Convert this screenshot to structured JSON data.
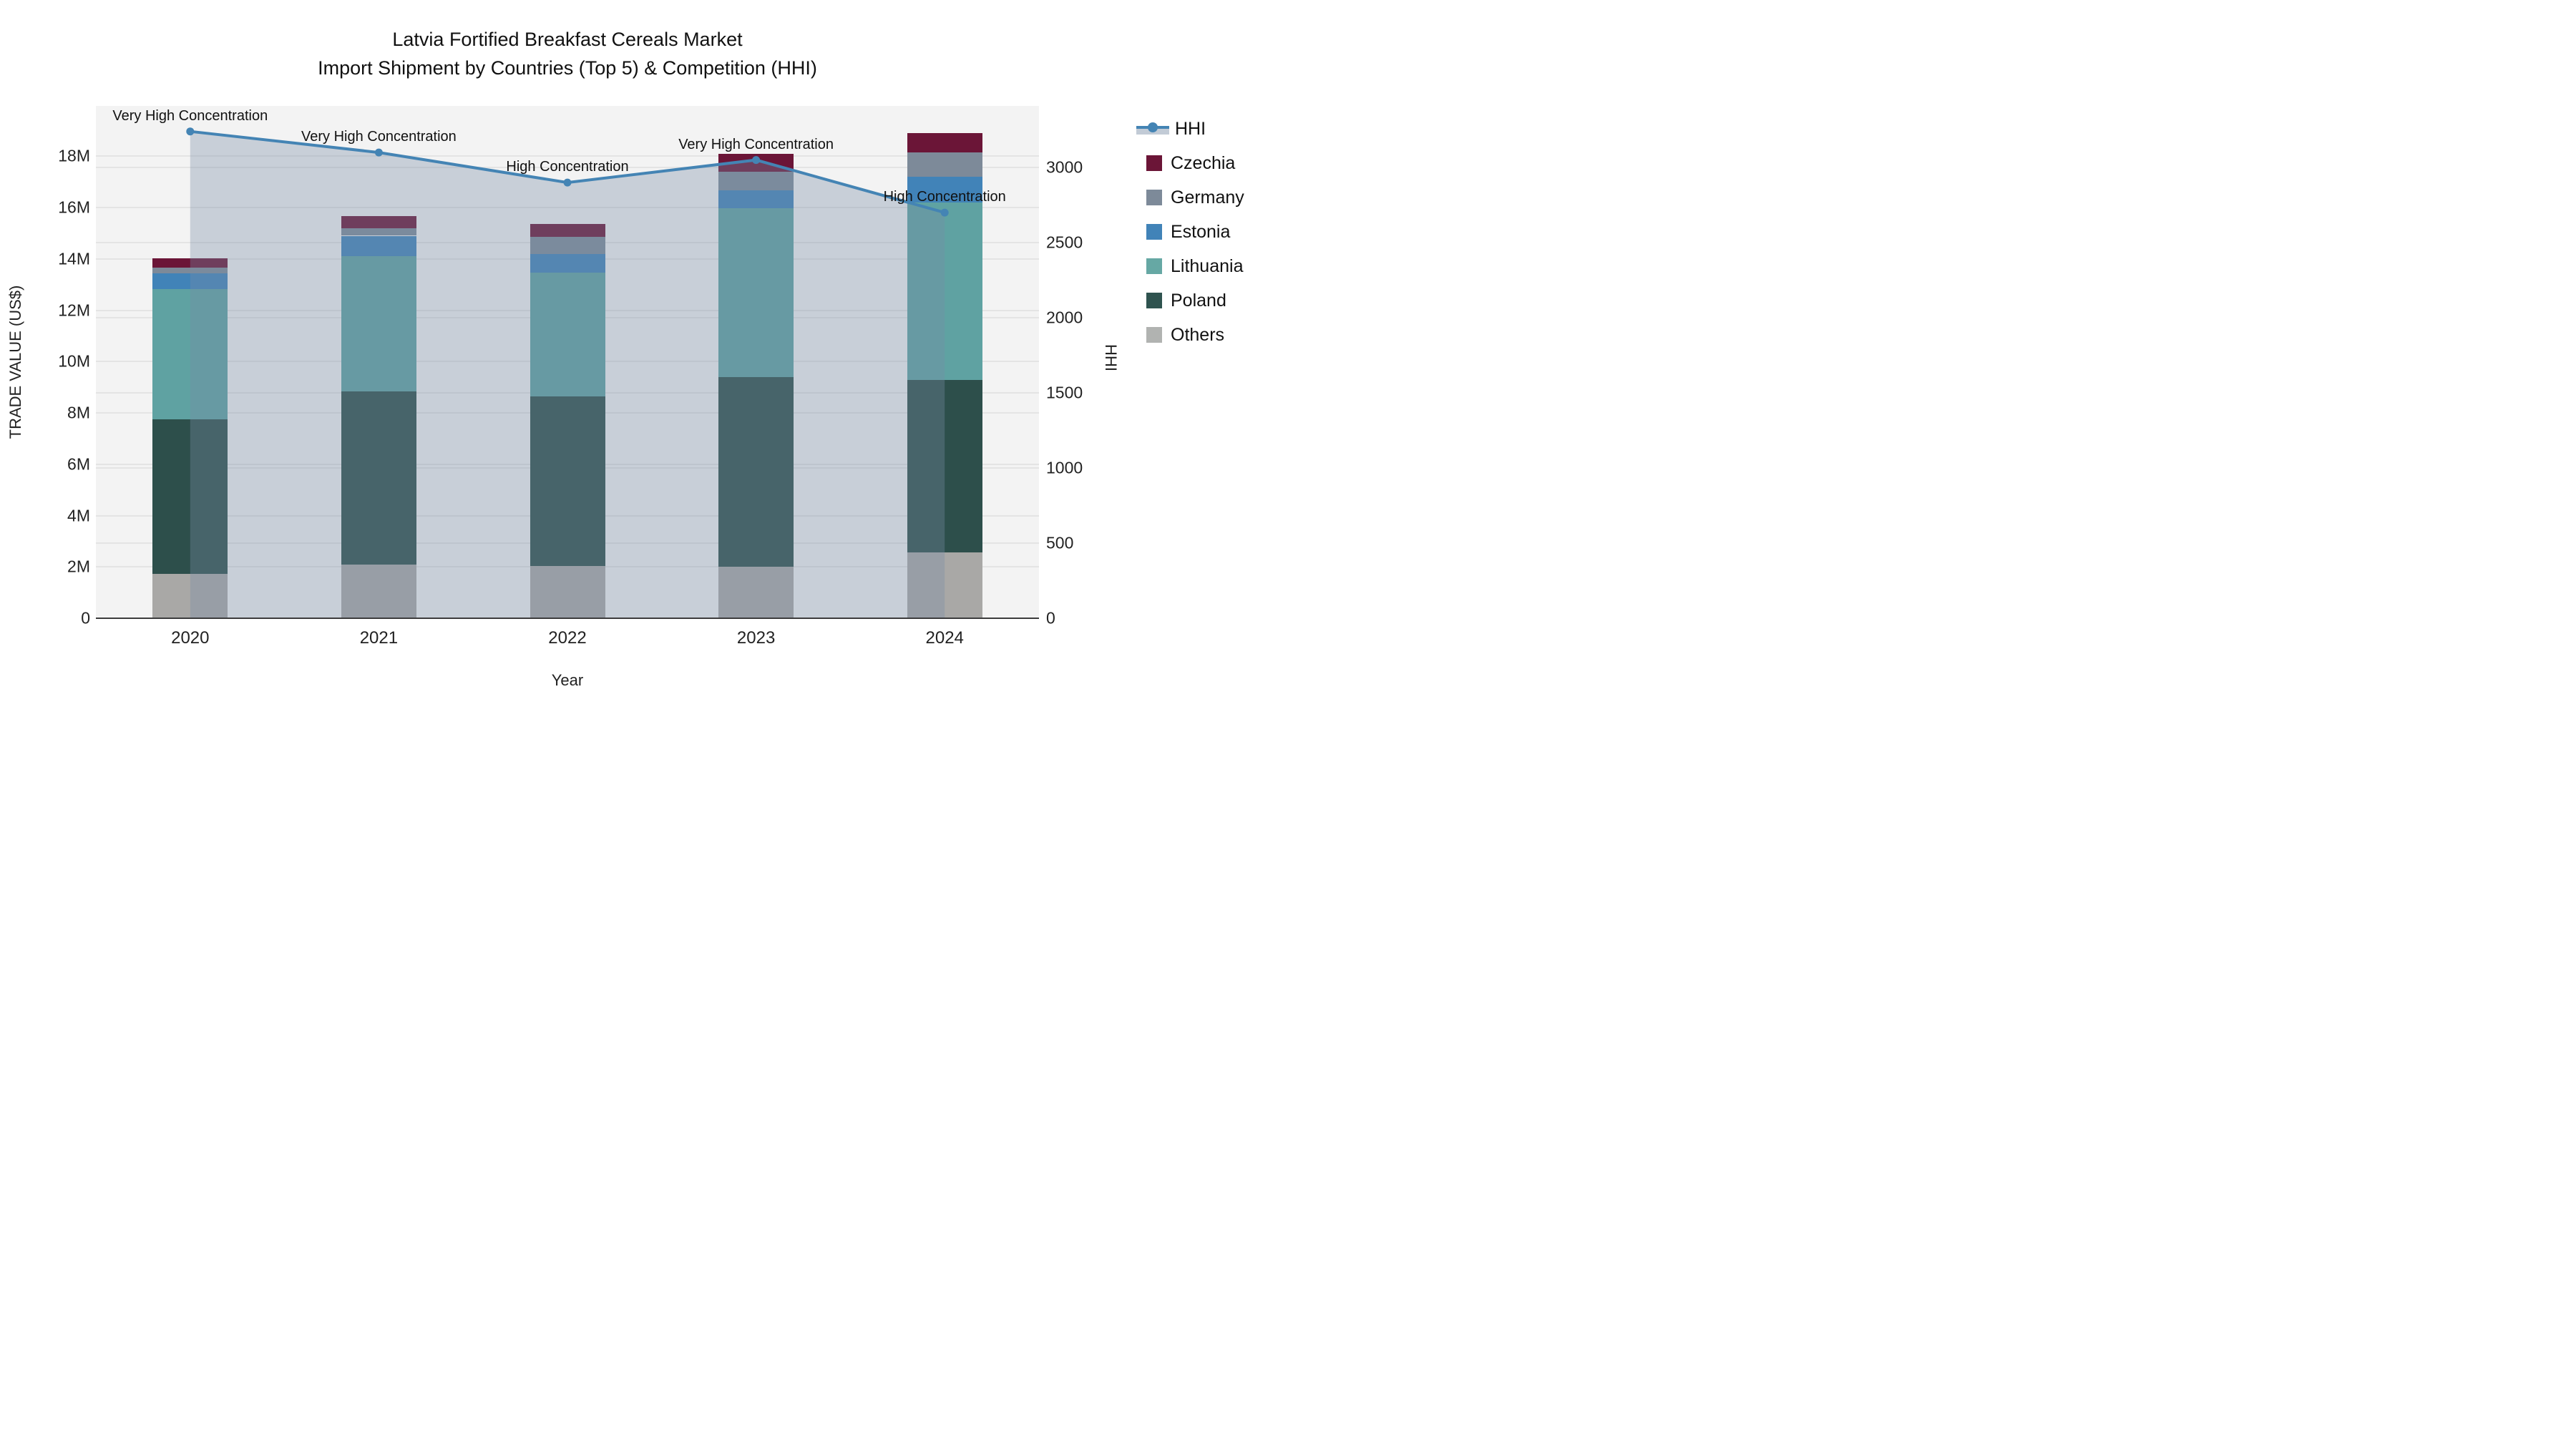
{
  "title": {
    "line1": "Latvia Fortified Breakfast Cereals Market",
    "line2": "Import Shipment by Countries (Top 5) & Competition (HHI)"
  },
  "axes": {
    "x": {
      "title": "Year",
      "ticks": [
        "2020",
        "2021",
        "2022",
        "2023",
        "2024"
      ]
    },
    "y_left": {
      "title": "TRADE VALUE (US$)",
      "ticks": [
        "0",
        "2M",
        "4M",
        "6M",
        "8M",
        "10M",
        "12M",
        "14M",
        "16M",
        "18M"
      ],
      "tick_values_m": [
        0,
        2,
        4,
        6,
        8,
        10,
        12,
        14,
        16,
        18
      ],
      "max_m": 19.96
    },
    "y_right": {
      "title": "HHI",
      "ticks": [
        "0",
        "500",
        "1000",
        "1500",
        "2000",
        "2500",
        "3000"
      ],
      "tick_values": [
        0,
        500,
        1000,
        1500,
        2000,
        2500,
        3000
      ],
      "max": 3410
    }
  },
  "chart_data": {
    "type": "bar+line",
    "categories": [
      "2020",
      "2021",
      "2022",
      "2023",
      "2024"
    ],
    "stacked_bar_units": "million US$",
    "series": [
      {
        "name": "Others",
        "color": "#a9a8a6",
        "values": [
          1.73,
          2.08,
          2.03,
          2.02,
          2.56
        ]
      },
      {
        "name": "Poland",
        "color": "#2d4f4b",
        "values": [
          6.02,
          6.77,
          6.6,
          7.37,
          6.71
        ]
      },
      {
        "name": "Lithuania",
        "color": "#5fa2a2",
        "values": [
          5.07,
          5.25,
          4.83,
          6.57,
          6.93
        ]
      },
      {
        "name": "Estonia",
        "color": "#4183b8",
        "values": [
          0.63,
          0.8,
          0.73,
          0.72,
          1.0
        ]
      },
      {
        "name": "Germany",
        "color": "#7d8a99",
        "values": [
          0.21,
          0.29,
          0.67,
          0.71,
          0.96
        ]
      },
      {
        "name": "Czechia",
        "color": "#6b1537",
        "values": [
          0.37,
          0.49,
          0.51,
          0.69,
          0.74
        ]
      }
    ],
    "bar_totals_m": [
      14.03,
      15.68,
      15.37,
      18.08,
      18.9
    ],
    "line_series": {
      "name": "HHI",
      "color": "#4484b4",
      "area_fill": "rgba(120,140,165,0.35)",
      "values": [
        3240,
        3100,
        2900,
        3050,
        2700
      ]
    },
    "annotations": [
      {
        "x": "2020",
        "text": "Very High Concentration"
      },
      {
        "x": "2021",
        "text": "Very High Concentration"
      },
      {
        "x": "2022",
        "text": "High Concentration"
      },
      {
        "x": "2023",
        "text": "Very High Concentration"
      },
      {
        "x": "2024",
        "text": "High Concentration"
      }
    ],
    "legend_position": "right",
    "grid": true
  },
  "legend": {
    "items": [
      {
        "label": "HHI",
        "type": "line"
      },
      {
        "label": "Czechia",
        "type": "swatch",
        "color": "#6b1537"
      },
      {
        "label": "Germany",
        "type": "swatch",
        "color": "#7d8a99"
      },
      {
        "label": "Estonia",
        "type": "swatch",
        "color": "#4183b8"
      },
      {
        "label": "Lithuania",
        "type": "swatch",
        "color": "#66a8a4"
      },
      {
        "label": "Poland",
        "type": "swatch",
        "color": "#2f534f"
      },
      {
        "label": "Others",
        "type": "swatch",
        "color": "#b1b3b1"
      }
    ]
  }
}
